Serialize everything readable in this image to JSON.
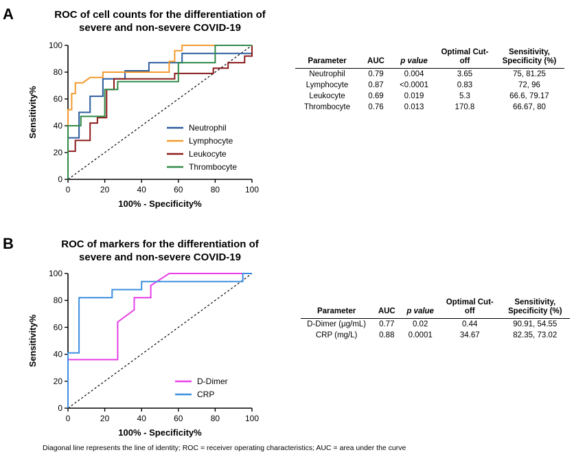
{
  "panels": [
    {
      "letter": "A",
      "title_line1": "ROC of cell counts for the differentiation of",
      "title_line2": "severe and non-severe COVID-19"
    },
    {
      "letter": "B",
      "title_line1": "ROC of markers for the differentiation of",
      "title_line2": "severe and non-severe COVID-19"
    }
  ],
  "table_a": {
    "headers": [
      "Parameter",
      "AUC",
      "p value",
      "Optimal Cut-off",
      "Sensitivity, Specificity (%)"
    ],
    "rows": [
      [
        "Neutrophil",
        "0.79",
        "0.004",
        "3.65",
        "75, 81.25"
      ],
      [
        "Lymphocyte",
        "0.87",
        "<0.0001",
        "0.83",
        "72, 96"
      ],
      [
        "Leukocyte",
        "0.69",
        "0.019",
        "5.3",
        "66.6, 79.17"
      ],
      [
        "Thrombocyte",
        "0.76",
        "0.013",
        "170.8",
        "66.67, 80"
      ]
    ]
  },
  "table_b": {
    "headers": [
      "Parameter",
      "AUC",
      "p value",
      "Optimal Cut-off",
      "Sensitivity, Specificity (%)"
    ],
    "rows": [
      [
        "D-Dimer (μg/mL)",
        "0.77",
        "0.02",
        "0.44",
        "90.91, 54.55"
      ],
      [
        "CRP (mg/L)",
        "0.88",
        "0.0001",
        "34.67",
        "82.35, 73.02"
      ]
    ]
  },
  "footnote": "Diagonal line represents the line of identity; ROC = receiver operating characteristics; AUC = area under the curve",
  "chart_data": [
    {
      "type": "line",
      "title": "ROC of cell counts for the differentiation of severe and non-severe COVID-19",
      "xlabel": "100% - Specificity%",
      "ylabel": "Sensitivity%",
      "xlim": [
        0,
        100
      ],
      "ylim": [
        0,
        100
      ],
      "xticks": [
        0,
        20,
        40,
        60,
        80,
        100
      ],
      "yticks": [
        0,
        20,
        40,
        60,
        80,
        100
      ],
      "legend_position": "bottom-right",
      "reference_line": "diagonal",
      "series": [
        {
          "name": "Neutrophil",
          "color": "#2b5c9e",
          "points": [
            [
              0,
              0
            ],
            [
              0,
              31
            ],
            [
              6,
              31
            ],
            [
              6,
              50
            ],
            [
              12,
              50
            ],
            [
              12,
              62
            ],
            [
              19,
              62
            ],
            [
              19,
              75
            ],
            [
              31,
              75
            ],
            [
              31,
              81
            ],
            [
              44,
              81
            ],
            [
              44,
              87
            ],
            [
              62,
              87
            ],
            [
              62,
              94
            ],
            [
              100,
              94
            ],
            [
              100,
              100
            ]
          ]
        },
        {
          "name": "Lymphocyte",
          "color": "#f39a2c",
          "points": [
            [
              0,
              0
            ],
            [
              0,
              52
            ],
            [
              2,
              52
            ],
            [
              2,
              60
            ],
            [
              2,
              64
            ],
            [
              4,
              64
            ],
            [
              4,
              72
            ],
            [
              8,
              72
            ],
            [
              8,
              72
            ],
            [
              12,
              76
            ],
            [
              19,
              76
            ],
            [
              19,
              80
            ],
            [
              55,
              80
            ],
            [
              55,
              88
            ],
            [
              58,
              88
            ],
            [
              58,
              96
            ],
            [
              62,
              96
            ],
            [
              62,
              100
            ],
            [
              100,
              100
            ]
          ]
        },
        {
          "name": "Leukocyte",
          "color": "#8b1a1a",
          "points": [
            [
              0,
              0
            ],
            [
              0,
              21
            ],
            [
              4,
              21
            ],
            [
              4,
              29
            ],
            [
              12,
              29
            ],
            [
              12,
              42
            ],
            [
              16,
              42
            ],
            [
              16,
              46
            ],
            [
              21,
              46
            ],
            [
              21,
              67
            ],
            [
              25,
              67
            ],
            [
              25,
              75
            ],
            [
              58,
              75
            ],
            [
              58,
              79
            ],
            [
              79,
              79
            ],
            [
              79,
              83
            ],
            [
              87,
              83
            ],
            [
              87,
              87
            ],
            [
              96,
              87
            ],
            [
              96,
              92
            ],
            [
              100,
              92
            ],
            [
              100,
              100
            ]
          ]
        },
        {
          "name": "Thrombocyte",
          "color": "#2f8a46",
          "points": [
            [
              0,
              0
            ],
            [
              0,
              40
            ],
            [
              7,
              40
            ],
            [
              7,
              47
            ],
            [
              20,
              47
            ],
            [
              20,
              67
            ],
            [
              27,
              67
            ],
            [
              27,
              73
            ],
            [
              60,
              73
            ],
            [
              60,
              87
            ],
            [
              80,
              87
            ],
            [
              80,
              93
            ],
            [
              80,
              100
            ],
            [
              100,
              100
            ]
          ]
        }
      ]
    },
    {
      "type": "line",
      "title": "ROC of markers for the differentiation of severe and non-severe COVID-19",
      "xlabel": "100% - Specificity%",
      "ylabel": "Sensitivity%",
      "xlim": [
        0,
        100
      ],
      "ylim": [
        0,
        100
      ],
      "xticks": [
        0,
        20,
        40,
        60,
        80,
        100
      ],
      "yticks": [
        0,
        20,
        40,
        60,
        80,
        100
      ],
      "legend_position": "bottom-right",
      "reference_line": "diagonal",
      "series": [
        {
          "name": "D-Dimer",
          "color": "#e83ee8",
          "points": [
            [
              0,
              0
            ],
            [
              0,
              36
            ],
            [
              27,
              36
            ],
            [
              27,
              64
            ],
            [
              36,
              73
            ],
            [
              36,
              82
            ],
            [
              45,
              82
            ],
            [
              45,
              91
            ],
            [
              55,
              100
            ],
            [
              100,
              100
            ]
          ]
        },
        {
          "name": "CRP",
          "color": "#3b8fe0",
          "points": [
            [
              0,
              0
            ],
            [
              0,
              41
            ],
            [
              6,
              41
            ],
            [
              6,
              82
            ],
            [
              24,
              82
            ],
            [
              24,
              88
            ],
            [
              40,
              88
            ],
            [
              40,
              94
            ],
            [
              95,
              94
            ],
            [
              95,
              100
            ],
            [
              100,
              100
            ]
          ]
        }
      ]
    }
  ]
}
